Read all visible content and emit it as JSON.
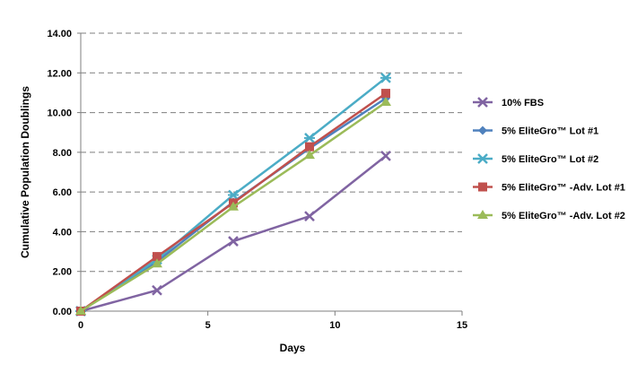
{
  "chart_data": {
    "type": "line",
    "xlabel": "Days",
    "ylabel": "Cumulative  Population Doublings",
    "xlim": [
      0,
      15
    ],
    "ylim": [
      0,
      14
    ],
    "xticks": [
      0,
      5,
      10,
      15
    ],
    "yticks": [
      "0.00",
      "2.00",
      "4.00",
      "6.00",
      "8.00",
      "10.00",
      "12.00",
      "14.00"
    ],
    "grid": "horizontal dashed",
    "legend_position": "right",
    "series": [
      {
        "name": "10% FBS",
        "color": "#8064a2",
        "marker": "x",
        "x": [
          0,
          3,
          6,
          9,
          12
        ],
        "y": [
          0,
          1.05,
          3.52,
          4.78,
          7.82
        ]
      },
      {
        "name": "5% EliteGro™ Lot #1",
        "color": "#4f81bd",
        "marker": "diamond",
        "x": [
          0,
          3,
          6,
          9,
          12
        ],
        "y": [
          0,
          2.5,
          5.5,
          8.2,
          10.72
        ]
      },
      {
        "name": "5% EliteGro™ Lot #2",
        "color": "#4bacc6",
        "marker": "asterisk",
        "x": [
          0,
          3,
          6,
          9,
          12
        ],
        "y": [
          0,
          2.6,
          5.85,
          8.72,
          11.75
        ]
      },
      {
        "name": "5% EliteGro™ -Adv. Lot #1",
        "color": "#c0504d",
        "marker": "square",
        "x": [
          0,
          3,
          6,
          9,
          12
        ],
        "y": [
          0,
          2.75,
          5.45,
          8.28,
          10.97
        ]
      },
      {
        "name": "5% EliteGro™ -Adv. Lot #2",
        "color": "#9bbb59",
        "marker": "triangle",
        "x": [
          0,
          3,
          6,
          9,
          12
        ],
        "y": [
          0,
          2.38,
          5.25,
          7.85,
          10.52
        ]
      }
    ]
  }
}
